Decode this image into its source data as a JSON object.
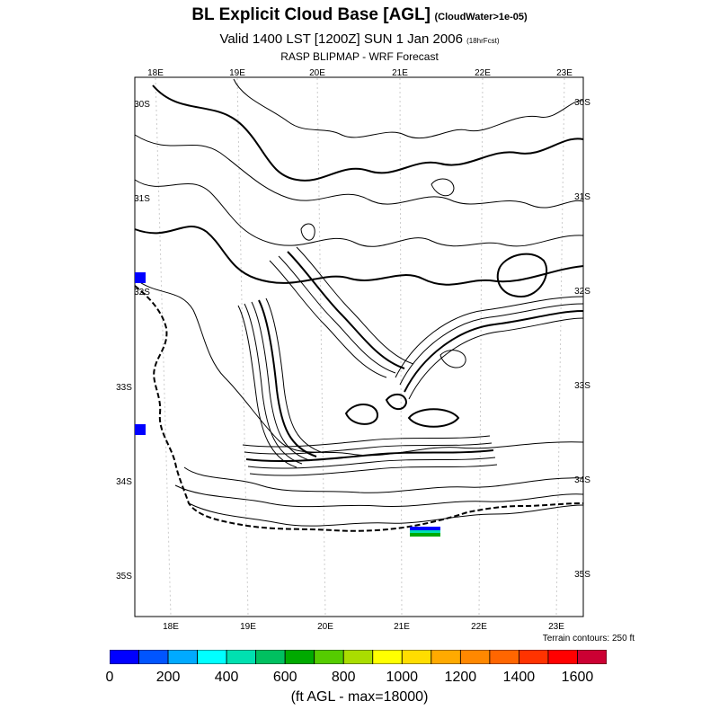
{
  "title": {
    "main": "BL Explicit Cloud Base [AGL]",
    "main_note": "(CloudWater>1e-05)",
    "valid": "Valid 1400 LST [1200Z] SUN 1 Jan 2006",
    "valid_note": "(18hrFcst)",
    "source": "RASP BLIPMAP - WRF Forecast"
  },
  "map": {
    "top_lon_labels": [
      "18E",
      "19E",
      "20E",
      "21E",
      "22E",
      "23E"
    ],
    "bottom_lon_labels": [
      "18E",
      "19E",
      "20E",
      "21E",
      "22E",
      "23E"
    ],
    "left_lat_labels": [
      "30S",
      "31S",
      "32S",
      "33S",
      "34S",
      "35S"
    ],
    "right_lat_labels": [
      "30S",
      "31S",
      "32S",
      "33S",
      "34S",
      "35S"
    ],
    "terrain_note": "Terrain contours: 250 ft"
  },
  "colorbar": {
    "tick_labels": [
      "0",
      "200",
      "400",
      "600",
      "800",
      "1000",
      "1200",
      "1400",
      "1600"
    ],
    "colors": [
      "#0000ff",
      "#0055ff",
      "#00aaff",
      "#00ffff",
      "#00e0b0",
      "#00c060",
      "#00aa00",
      "#55cc00",
      "#aadd00",
      "#ffff00",
      "#ffdd00",
      "#ffaa00",
      "#ff8800",
      "#ff6600",
      "#ff3300",
      "#ff0000",
      "#cc0033"
    ],
    "units_label": "(ft AGL - max=18000)"
  }
}
